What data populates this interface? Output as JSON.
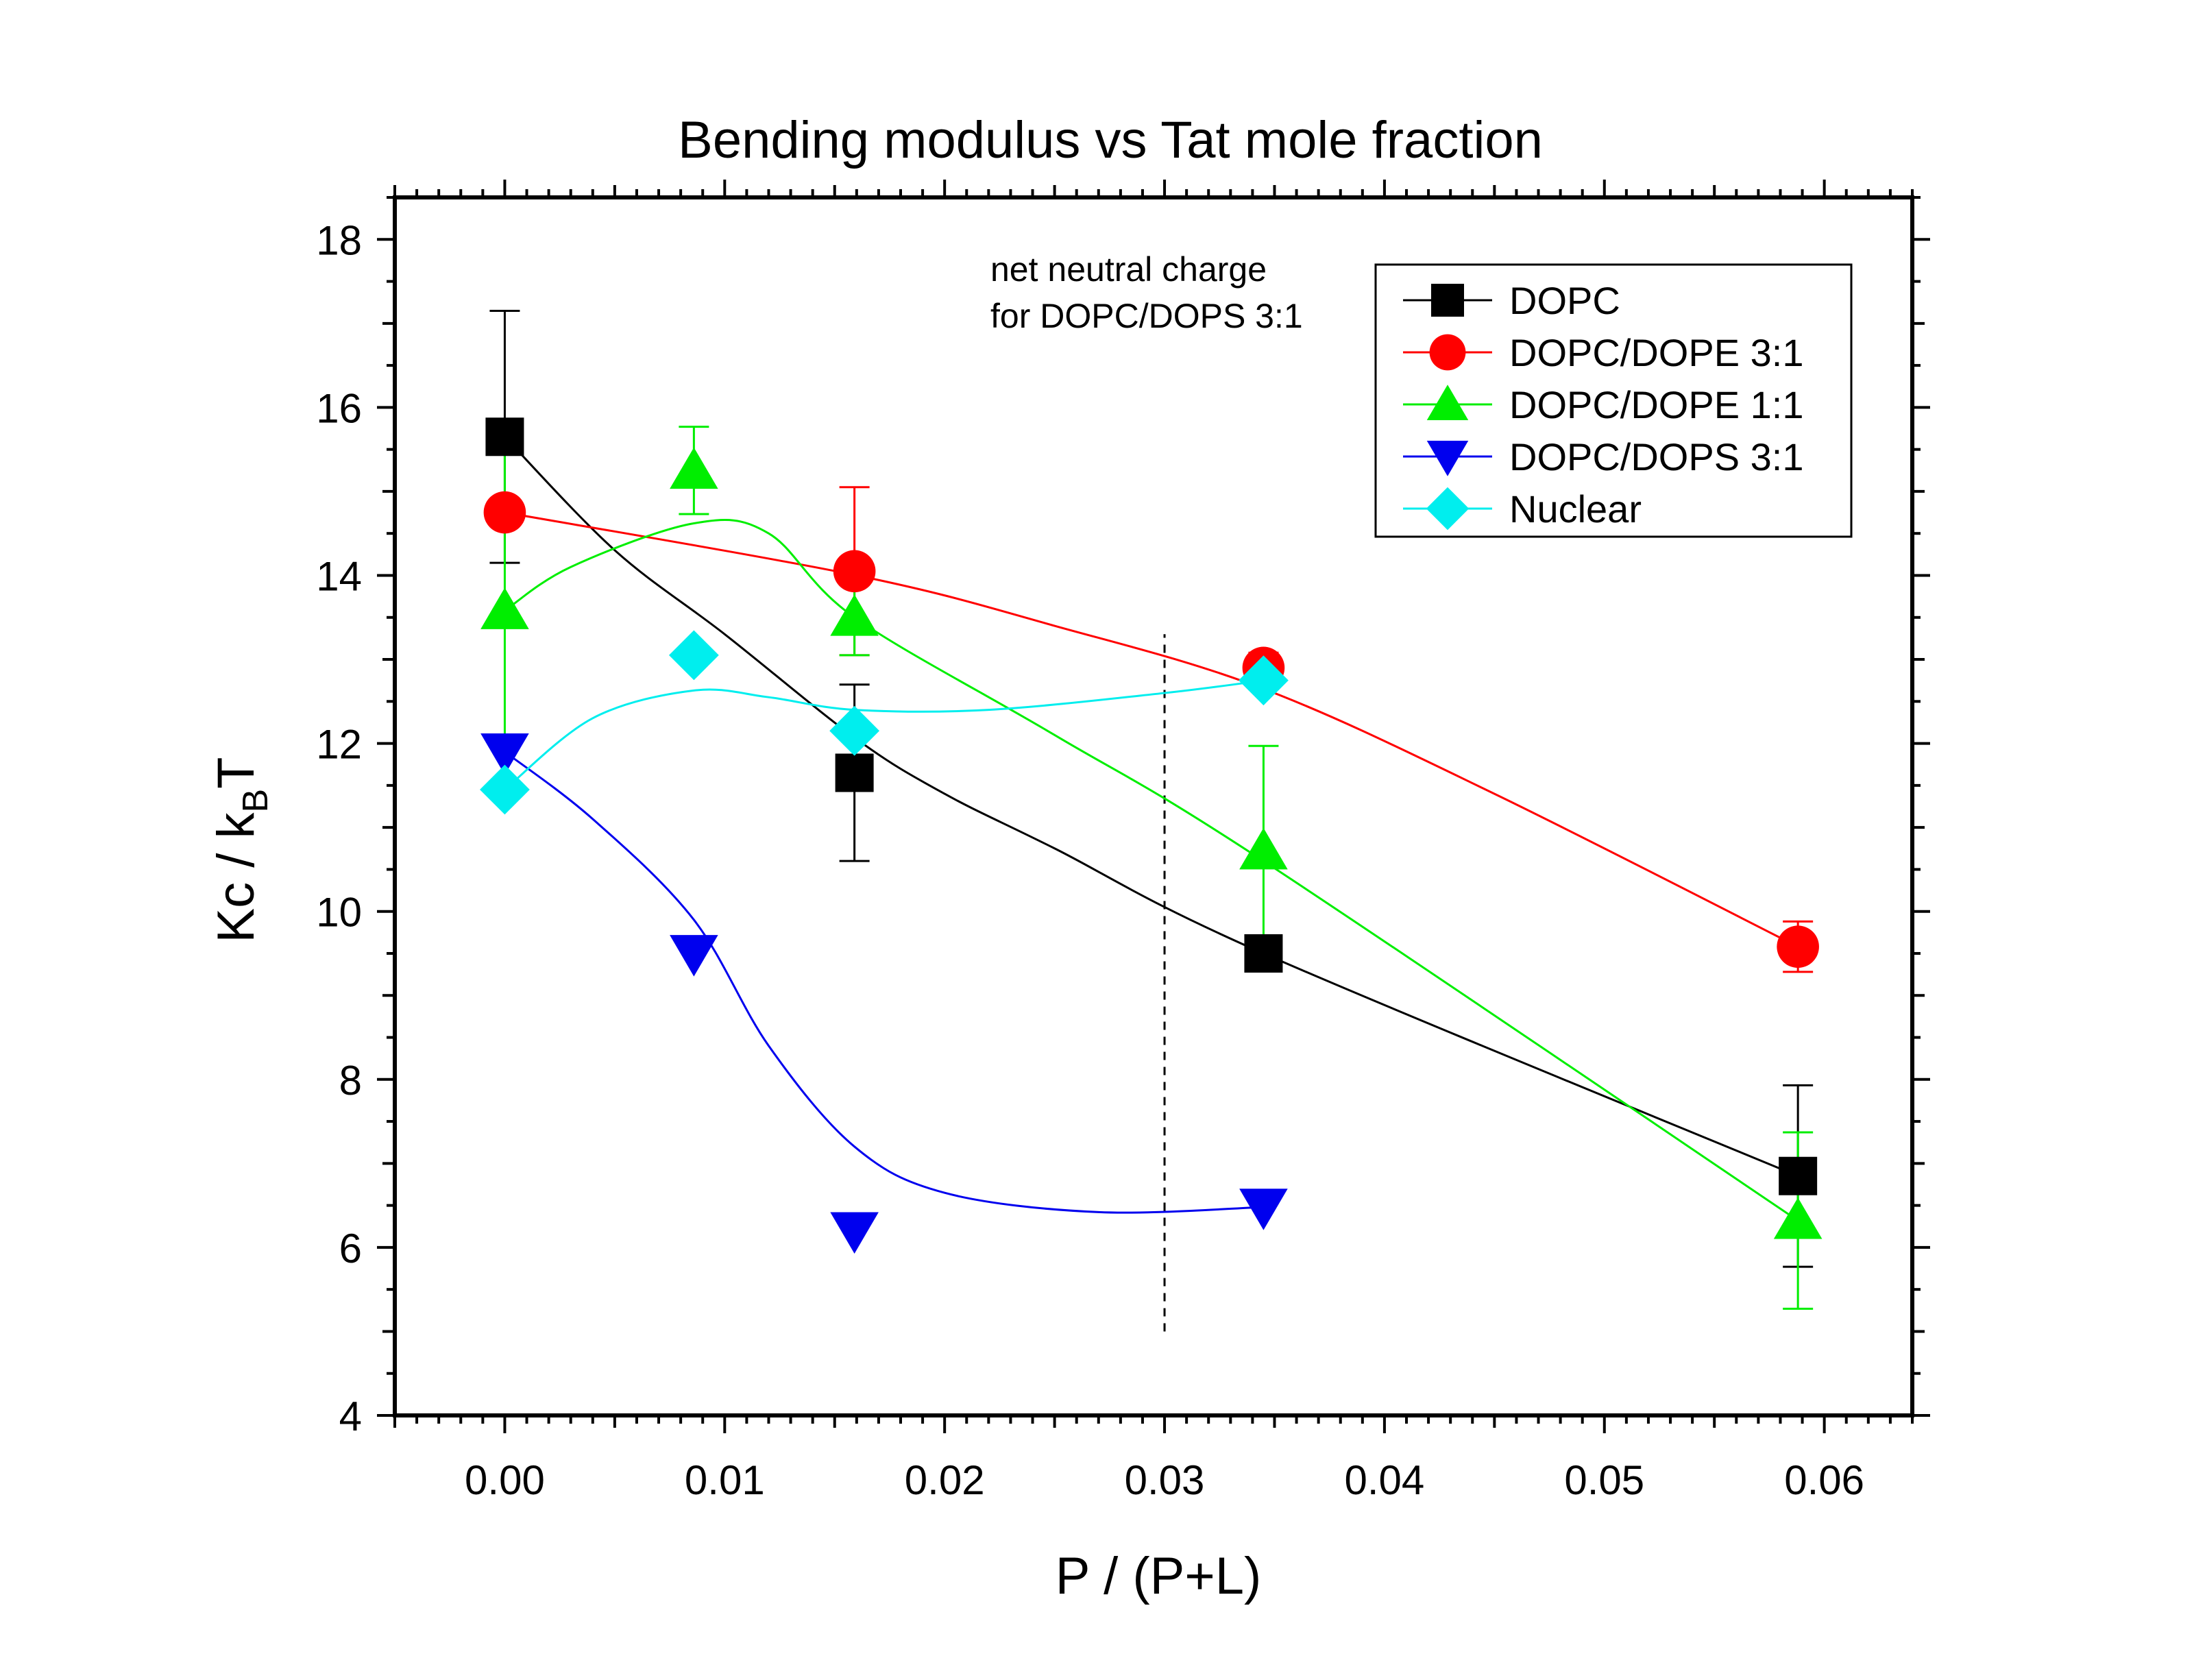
{
  "chart_data": {
    "type": "scatter",
    "title": "Bending modulus vs Tat mole fraction",
    "xlabel": "P / (P+L)",
    "ylabel": "Kc / k",
    "ylabel_sub": "B",
    "ylabel_tail": "T",
    "xlim": [
      -0.005,
      0.064
    ],
    "ylim": [
      4,
      18.5
    ],
    "x_ticks": [
      0.0,
      0.01,
      0.02,
      0.03,
      0.04,
      0.05,
      0.06
    ],
    "x_tick_labels": [
      "0.00",
      "0.01",
      "0.02",
      "0.03",
      "0.04",
      "0.05",
      "0.06"
    ],
    "y_ticks": [
      4,
      6,
      8,
      10,
      12,
      14,
      16,
      18
    ],
    "y_tick_labels": [
      "4",
      "6",
      "8",
      "10",
      "12",
      "14",
      "16",
      "18"
    ],
    "grid": false,
    "legend_position": "top-right",
    "annotation": {
      "lines": [
        "net neutral charge",
        "for DOPC/DOPS 3:1"
      ],
      "x": 0.03,
      "y_range": [
        5,
        13.3
      ]
    },
    "series": [
      {
        "name": "DOPC",
        "color": "#000000",
        "marker": "square",
        "points": [
          {
            "x": 0.0,
            "y": 15.65,
            "err": 1.5
          },
          {
            "x": 0.0159,
            "y": 11.65,
            "err": 1.05
          },
          {
            "x": 0.0345,
            "y": 9.5,
            "err": 0
          },
          {
            "x": 0.0588,
            "y": 6.85,
            "err": 1.08
          }
        ],
        "curve": [
          [
            0.0,
            15.65
          ],
          [
            0.005,
            14.3
          ],
          [
            0.01,
            13.3
          ],
          [
            0.016,
            12.05
          ],
          [
            0.02,
            11.4
          ],
          [
            0.025,
            10.75
          ],
          [
            0.0345,
            9.5
          ],
          [
            0.0588,
            6.85
          ]
        ]
      },
      {
        "name": "DOPC/DOPE 3:1",
        "color": "#ff0000",
        "marker": "circle",
        "points": [
          {
            "x": 0.0,
            "y": 14.75,
            "err": 0
          },
          {
            "x": 0.0159,
            "y": 14.05,
            "err": 1.0
          },
          {
            "x": 0.0345,
            "y": 12.9,
            "err": 0.18
          },
          {
            "x": 0.0588,
            "y": 9.58,
            "err": 0.3
          }
        ],
        "curve": [
          [
            0.0,
            14.75
          ],
          [
            0.016,
            14.0
          ],
          [
            0.025,
            13.4
          ],
          [
            0.0345,
            12.65
          ],
          [
            0.045,
            11.4
          ],
          [
            0.0588,
            9.58
          ]
        ]
      },
      {
        "name": "DOPC/DOPE 1:1",
        "color": "#00ee00",
        "marker": "triangle-up",
        "points": [
          {
            "x": 0.0,
            "y": 13.58,
            "err": 2.2
          },
          {
            "x": 0.0086,
            "y": 15.25,
            "err": 0.52
          },
          {
            "x": 0.0159,
            "y": 13.5,
            "err": 0.45
          },
          {
            "x": 0.0345,
            "y": 10.72,
            "err": 1.25
          },
          {
            "x": 0.0588,
            "y": 6.32,
            "err": 1.05
          }
        ],
        "curve": [
          [
            0.0,
            13.58
          ],
          [
            0.003,
            14.1
          ],
          [
            0.0086,
            14.62
          ],
          [
            0.012,
            14.5
          ],
          [
            0.0159,
            13.5
          ],
          [
            0.025,
            12.1
          ],
          [
            0.0345,
            10.6
          ],
          [
            0.0588,
            6.32
          ]
        ]
      },
      {
        "name": "DOPC/DOPS 3:1",
        "color": "#0000ee",
        "marker": "triangle-down",
        "points": [
          {
            "x": 0.0,
            "y": 11.9,
            "err": 0
          },
          {
            "x": 0.0086,
            "y": 9.5,
            "err": 0
          },
          {
            "x": 0.0159,
            "y": 6.2,
            "err": 0
          },
          {
            "x": 0.0345,
            "y": 6.48,
            "err": 0
          }
        ],
        "curve": [
          [
            0.0,
            11.9
          ],
          [
            0.004,
            11.1
          ],
          [
            0.0086,
            9.9
          ],
          [
            0.012,
            8.4
          ],
          [
            0.0159,
            7.2
          ],
          [
            0.02,
            6.65
          ],
          [
            0.027,
            6.42
          ],
          [
            0.0345,
            6.48
          ]
        ]
      },
      {
        "name": "Nuclear",
        "color": "#00eeee",
        "marker": "diamond",
        "points": [
          {
            "x": 0.0,
            "y": 11.45,
            "err": 0
          },
          {
            "x": 0.0086,
            "y": 13.05,
            "err": 0
          },
          {
            "x": 0.0159,
            "y": 12.15,
            "err": 0
          },
          {
            "x": 0.0345,
            "y": 12.75,
            "err": 0
          }
        ],
        "curve": [
          [
            0.0,
            11.45
          ],
          [
            0.004,
            12.3
          ],
          [
            0.0086,
            12.63
          ],
          [
            0.012,
            12.55
          ],
          [
            0.0159,
            12.4
          ],
          [
            0.022,
            12.4
          ],
          [
            0.03,
            12.6
          ],
          [
            0.0345,
            12.75
          ]
        ]
      }
    ]
  }
}
